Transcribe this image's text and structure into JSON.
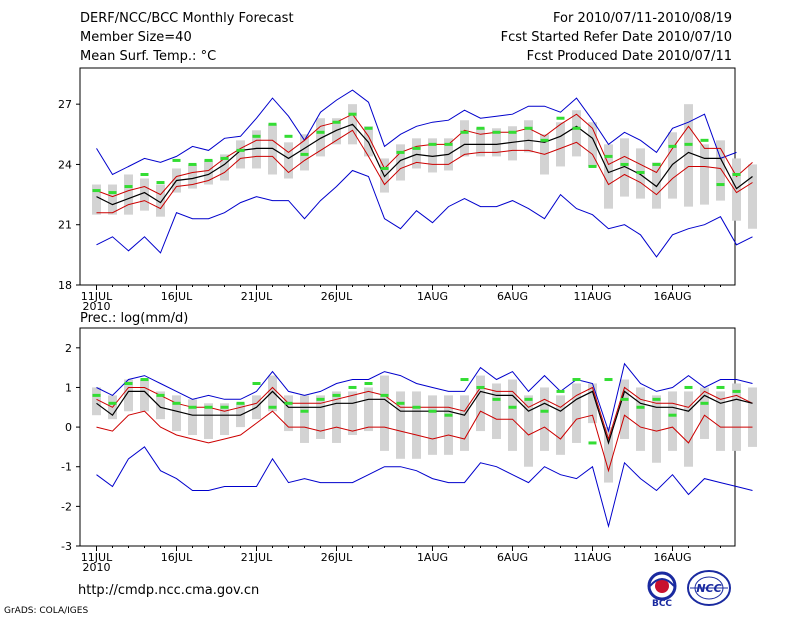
{
  "header": {
    "title": "DERF/NCC/BCC Monthly Forecast",
    "member_size": "Member Size=40",
    "variable": "Mean Surf. Temp.: °C",
    "period": "For 2010/07/11-2010/08/19",
    "start_date": "Fcst Started Refer Date 2010/07/10",
    "produced_date": "Fcst Produced Date 2010/07/11"
  },
  "colors": {
    "ensemble_mean": "#000000",
    "spread": "#cc0000",
    "envelope": "#0000cc",
    "boxes": "#d3d3d3",
    "obs": "#33dd33"
  },
  "footer": {
    "url": "http://cmdp.ncc.cma.gov.cn",
    "credit": "GrADS: COLA/IGES",
    "logo_left_text": "BCC",
    "logo_right_text": "NCC"
  },
  "chart_data": [
    {
      "type": "line",
      "title": "Mean Surf. Temp.: °C",
      "ylabel": "°C",
      "ylim": [
        18,
        28.8
      ],
      "yticks": [
        18,
        21,
        24,
        27
      ],
      "xticks": [
        "11JUL",
        "16JUL",
        "21JUL",
        "26JUL",
        "1AUG",
        "6AUG",
        "11AUG",
        "16AUG"
      ],
      "xtick_days": [
        1,
        6,
        11,
        16,
        22,
        27,
        32,
        37
      ],
      "x_start_label": "2010",
      "ndays": 40,
      "series": [
        {
          "name": "max",
          "values": [
            24.8,
            23.5,
            23.9,
            24.3,
            24.1,
            24.4,
            24.9,
            24.7,
            25.3,
            25.4,
            26.3,
            27.3,
            26.4,
            25.2,
            26.6,
            27.2,
            27.7,
            27.1,
            24.9,
            25.5,
            25.9,
            26.1,
            26.2,
            26.7,
            26.3,
            26.4,
            26.5,
            26.9,
            26.9,
            26.6,
            27.3,
            26.2,
            25.0,
            25.6,
            25.2,
            24.6,
            25.8,
            26.1,
            26.5,
            24.3,
            24.6
          ]
        },
        {
          "name": "upper",
          "values": [
            22.7,
            22.4,
            22.7,
            22.9,
            22.5,
            23.4,
            23.6,
            23.7,
            24.3,
            24.8,
            25.2,
            25.2,
            24.6,
            25.2,
            25.9,
            26.1,
            26.5,
            25.4,
            23.8,
            24.6,
            24.9,
            25.0,
            25.0,
            25.7,
            25.5,
            25.6,
            25.6,
            25.8,
            25.4,
            26.0,
            26.5,
            25.8,
            24.0,
            24.4,
            24.0,
            23.6,
            24.8,
            25.9,
            24.8,
            24.8,
            23.4,
            24.1
          ]
        },
        {
          "name": "mean",
          "values": [
            22.4,
            22.0,
            22.3,
            22.6,
            22.1,
            23.2,
            23.3,
            23.5,
            24.0,
            24.7,
            24.8,
            24.8,
            24.3,
            24.8,
            25.3,
            25.7,
            26.0,
            25.1,
            23.4,
            24.2,
            24.5,
            24.4,
            24.5,
            25.0,
            25.0,
            25.0,
            25.1,
            25.2,
            25.1,
            25.4,
            25.9,
            25.3,
            23.6,
            23.9,
            23.5,
            22.9,
            24.0,
            24.6,
            24.3,
            24.3,
            22.8,
            23.4
          ]
        },
        {
          "name": "lower",
          "values": [
            21.6,
            21.6,
            22.0,
            22.2,
            21.8,
            22.9,
            23.0,
            23.2,
            23.6,
            24.3,
            24.4,
            24.4,
            23.6,
            24.2,
            24.7,
            25.2,
            25.7,
            24.4,
            23.0,
            23.8,
            24.1,
            24.0,
            24.0,
            24.5,
            24.6,
            24.6,
            24.7,
            24.7,
            24.5,
            24.8,
            25.1,
            24.5,
            23.0,
            23.5,
            23.1,
            22.5,
            23.3,
            23.9,
            23.9,
            23.8,
            22.6,
            23.1
          ]
        },
        {
          "name": "min",
          "values": [
            20.0,
            20.4,
            19.7,
            20.4,
            19.6,
            21.6,
            21.3,
            21.3,
            21.6,
            22.1,
            22.4,
            22.2,
            22.2,
            21.3,
            22.2,
            22.9,
            23.7,
            23.4,
            21.3,
            20.8,
            21.7,
            21.1,
            21.9,
            22.3,
            21.9,
            21.9,
            22.2,
            21.8,
            21.3,
            22.5,
            21.8,
            21.5,
            20.8,
            21.0,
            20.5,
            19.4,
            20.5,
            20.8,
            21.0,
            21.4,
            20.0,
            20.4
          ]
        },
        {
          "name": "box_top",
          "values": [
            23.0,
            23.0,
            23.5,
            23.3,
            23.0,
            23.8,
            24.0,
            24.2,
            24.5,
            25.2,
            25.7,
            26.0,
            25.1,
            25.5,
            26.3,
            26.3,
            27.0,
            25.9,
            24.3,
            25.0,
            25.3,
            25.3,
            25.3,
            26.2,
            25.8,
            25.8,
            25.9,
            26.2,
            25.5,
            26.1,
            26.7,
            26.1,
            25.0,
            25.3,
            24.8,
            24.1,
            25.6,
            27.0,
            25.0,
            25.2,
            24.3,
            24.0
          ]
        },
        {
          "name": "box_bottom",
          "values": [
            21.5,
            21.5,
            21.5,
            21.7,
            21.4,
            22.6,
            22.8,
            23.0,
            23.2,
            23.8,
            23.8,
            23.5,
            23.3,
            23.7,
            24.4,
            25.0,
            25.0,
            24.4,
            22.6,
            23.2,
            23.8,
            23.6,
            23.7,
            24.4,
            24.4,
            24.4,
            24.2,
            24.6,
            23.5,
            23.9,
            24.4,
            23.9,
            21.8,
            22.4,
            22.3,
            21.8,
            22.3,
            21.9,
            22.0,
            22.2,
            21.2,
            20.8
          ]
        },
        {
          "name": "observed",
          "values": [
            22.7,
            22.6,
            22.9,
            23.5,
            23.1,
            24.2,
            24.0,
            24.2,
            24.3,
            24.7,
            25.4,
            26.0,
            25.4,
            24.5,
            25.6,
            26.1,
            26.5,
            25.8,
            23.8,
            24.6,
            24.8,
            25.0,
            25.0,
            25.6,
            25.8,
            25.6,
            25.6,
            25.8,
            25.2,
            26.3,
            25.8,
            23.9,
            24.4,
            24.0,
            23.6,
            24.0,
            24.9,
            25.0,
            25.2,
            23.0,
            23.5
          ]
        }
      ]
    },
    {
      "type": "line",
      "title": "Prec.: log(mm/d)",
      "ylabel": "log(mm/d)",
      "ylim": [
        -3,
        2.5
      ],
      "yticks": [
        -3,
        -2,
        -1,
        0,
        1,
        2
      ],
      "xticks": [
        "11JUL",
        "16JUL",
        "21JUL",
        "26JUL",
        "1AUG",
        "6AUG",
        "11AUG",
        "16AUG"
      ],
      "xtick_days": [
        1,
        6,
        11,
        16,
        22,
        27,
        32,
        37
      ],
      "x_start_label": "2010",
      "ndays": 40,
      "series": [
        {
          "name": "max",
          "values": [
            1.0,
            0.8,
            1.2,
            1.3,
            1.1,
            0.9,
            0.7,
            0.8,
            0.7,
            0.7,
            0.9,
            1.4,
            0.9,
            0.8,
            0.9,
            1.1,
            1.2,
            1.2,
            1.4,
            1.3,
            1.1,
            1.0,
            0.9,
            0.9,
            1.5,
            1.2,
            1.4,
            0.9,
            1.3,
            0.9,
            1.2,
            1.1,
            -0.1,
            1.6,
            1.1,
            0.9,
            1.0,
            1.3,
            1.0,
            1.2,
            1.2,
            1.1
          ]
        },
        {
          "name": "upper",
          "values": [
            0.7,
            0.5,
            1.0,
            1.0,
            0.8,
            0.6,
            0.5,
            0.5,
            0.4,
            0.5,
            0.6,
            1.0,
            0.6,
            0.6,
            0.6,
            0.7,
            0.8,
            0.9,
            0.8,
            0.5,
            0.5,
            0.5,
            0.5,
            0.4,
            1.0,
            0.9,
            0.9,
            0.5,
            0.7,
            0.5,
            0.8,
            1.0,
            -0.3,
            1.0,
            0.7,
            0.6,
            0.6,
            0.5,
            0.9,
            0.7,
            0.8,
            0.6
          ]
        },
        {
          "name": "mean",
          "values": [
            0.6,
            0.3,
            0.9,
            0.9,
            0.5,
            0.4,
            0.3,
            0.3,
            0.3,
            0.3,
            0.5,
            0.9,
            0.5,
            0.5,
            0.5,
            0.6,
            0.6,
            0.7,
            0.7,
            0.4,
            0.4,
            0.4,
            0.4,
            0.3,
            0.9,
            0.8,
            0.8,
            0.4,
            0.6,
            0.4,
            0.7,
            0.9,
            -0.4,
            0.9,
            0.6,
            0.5,
            0.5,
            0.4,
            0.8,
            0.6,
            0.7,
            0.6
          ]
        },
        {
          "name": "lower",
          "values": [
            0.0,
            -0.1,
            0.3,
            0.4,
            0.0,
            -0.2,
            -0.3,
            -0.4,
            -0.3,
            -0.2,
            0.1,
            0.4,
            0.0,
            0.0,
            -0.1,
            0.0,
            -0.1,
            0.0,
            0.0,
            -0.1,
            -0.2,
            -0.3,
            -0.2,
            -0.3,
            0.4,
            0.2,
            0.2,
            -0.2,
            0.0,
            -0.3,
            0.2,
            0.3,
            -1.1,
            0.3,
            0.0,
            -0.1,
            0.0,
            -0.4,
            0.3,
            0.0,
            0.0,
            0.0
          ]
        },
        {
          "name": "min",
          "values": [
            -1.2,
            -1.5,
            -0.8,
            -0.5,
            -1.1,
            -1.3,
            -1.6,
            -1.6,
            -1.5,
            -1.5,
            -1.5,
            -0.8,
            -1.4,
            -1.3,
            -1.4,
            -1.4,
            -1.4,
            -1.2,
            -1.0,
            -1.0,
            -1.1,
            -1.3,
            -1.4,
            -1.4,
            -0.9,
            -1.0,
            -1.2,
            -1.4,
            -1.0,
            -1.2,
            -1.3,
            -1.0,
            -2.5,
            -0.9,
            -1.3,
            -1.6,
            -1.2,
            -1.7,
            -1.3,
            -1.4,
            -1.5,
            -1.6
          ]
        },
        {
          "name": "box_top",
          "values": [
            1.0,
            0.8,
            1.2,
            1.2,
            0.9,
            0.8,
            0.7,
            0.6,
            0.6,
            0.6,
            0.8,
            1.3,
            0.8,
            0.8,
            0.8,
            0.9,
            0.9,
            1.0,
            1.3,
            0.9,
            0.9,
            0.8,
            0.8,
            0.8,
            1.3,
            1.1,
            1.2,
            0.8,
            1.0,
            0.8,
            1.1,
            1.1,
            0.0,
            1.2,
            1.0,
            0.8,
            0.9,
            0.9,
            1.0,
            0.9,
            1.1,
            1.0
          ]
        },
        {
          "name": "box_bottom",
          "values": [
            0.3,
            0.2,
            0.4,
            0.4,
            0.2,
            -0.1,
            -0.2,
            -0.3,
            -0.2,
            0.0,
            0.2,
            0.4,
            -0.1,
            -0.4,
            -0.3,
            -0.4,
            -0.2,
            -0.1,
            -0.6,
            -0.8,
            -0.8,
            -0.7,
            -0.7,
            -0.6,
            -0.1,
            -0.3,
            -0.6,
            -1.0,
            -0.6,
            -0.7,
            -0.4,
            0.1,
            -1.4,
            -0.3,
            -0.6,
            -0.9,
            -0.6,
            -1.0,
            -0.3,
            -0.6,
            -0.6,
            -0.5
          ]
        },
        {
          "name": "observed",
          "values": [
            0.8,
            0.6,
            1.1,
            1.2,
            0.8,
            0.6,
            0.5,
            0.5,
            0.5,
            0.6,
            1.1,
            0.5,
            0.6,
            0.4,
            0.7,
            0.8,
            1.0,
            1.1,
            0.8,
            0.6,
            0.5,
            0.4,
            0.3,
            1.2,
            1.0,
            0.7,
            0.5,
            0.7,
            0.4,
            0.9,
            1.2,
            -0.4,
            1.2,
            0.7,
            0.5,
            0.7,
            0.3,
            1.0,
            0.6,
            1.0,
            0.9
          ]
        }
      ]
    }
  ]
}
